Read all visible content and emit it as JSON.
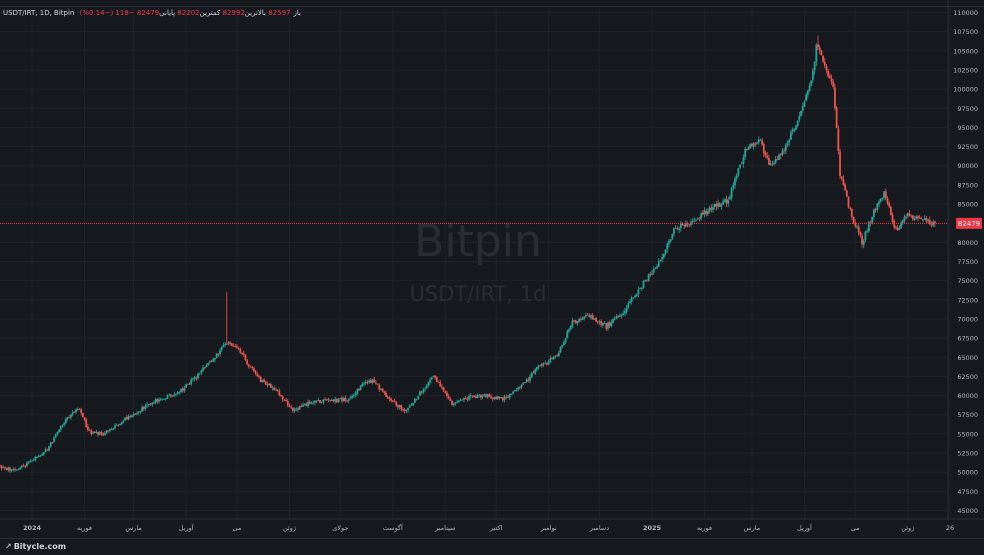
{
  "legend": {
    "symbol": "USDT/IRT, 1D, Bitpin",
    "o_label": "باز",
    "o_value": "82597",
    "h_label": "بالاترین",
    "h_value": "82992",
    "l_label": "کمترین",
    "l_value": "82202",
    "c_label": "پایانی",
    "c_value": "82479",
    "change": "−118 (−0.14%)"
  },
  "watermark": {
    "line1": "Bitpin",
    "line2": "USDT/IRT, 1d"
  },
  "footer": {
    "brand": "Bitycle.com"
  },
  "colors": {
    "background": "#161a1e",
    "up": "#26a69a",
    "down": "#ef5350",
    "price_line": "#f23645",
    "axis_text": "#b2b5be",
    "grid": "#2a2e39"
  },
  "chart_data": {
    "type": "candlestick",
    "title": "USDT/IRT, 1D, Bitpin",
    "ylim": [
      45000,
      110000
    ],
    "y_ticks": [
      45000,
      47500,
      50000,
      52500,
      55000,
      57500,
      60000,
      62500,
      65000,
      67500,
      70000,
      72500,
      75000,
      77500,
      80000,
      82500,
      85000,
      87500,
      90000,
      92500,
      95000,
      97500,
      100000,
      102500,
      105000,
      107500,
      110000
    ],
    "x_ticks": [
      {
        "label": "2024",
        "date": "2024-01-01"
      },
      {
        "label": "فوریه",
        "date": "2024-02-01"
      },
      {
        "label": "مارس",
        "date": "2024-03-01"
      },
      {
        "label": "آوریل",
        "date": "2024-04-01"
      },
      {
        "label": "می",
        "date": "2024-05-01"
      },
      {
        "label": "ژوئن",
        "date": "2024-06-01"
      },
      {
        "label": "جولای",
        "date": "2024-07-01"
      },
      {
        "label": "آگوست",
        "date": "2024-08-01"
      },
      {
        "label": "سپتامبر",
        "date": "2024-09-01"
      },
      {
        "label": "اکتبر",
        "date": "2024-10-01"
      },
      {
        "label": "نوامبر",
        "date": "2024-11-01"
      },
      {
        "label": "دسامبر",
        "date": "2024-12-01"
      },
      {
        "label": "2025",
        "date": "2025-01-01"
      },
      {
        "label": "فوریه",
        "date": "2025-02-01"
      },
      {
        "label": "مارس",
        "date": "2025-03-01"
      },
      {
        "label": "آوریل",
        "date": "2025-04-01"
      },
      {
        "label": "می",
        "date": "2025-05-01"
      },
      {
        "label": "ژوئن",
        "date": "2025-06-01"
      },
      {
        "label": "26",
        "date": "2025-06-26"
      }
    ],
    "last_price": 82479,
    "start_date": "2023-12-10",
    "end_date": "2025-06-17",
    "path": [
      [
        "2023-12-10",
        50800
      ],
      [
        "2023-12-22",
        50300
      ],
      [
        "2024-01-01",
        51500
      ],
      [
        "2024-01-10",
        53000
      ],
      [
        "2024-01-20",
        56500
      ],
      [
        "2024-01-28",
        58500
      ],
      [
        "2024-02-04",
        55200
      ],
      [
        "2024-02-12",
        55000
      ],
      [
        "2024-02-22",
        56500
      ],
      [
        "2024-03-05",
        58200
      ],
      [
        "2024-03-15",
        59500
      ],
      [
        "2024-03-25",
        60000
      ],
      [
        "2024-04-05",
        62000
      ],
      [
        "2024-04-15",
        64500
      ],
      [
        "2024-04-20",
        65500
      ],
      [
        "2024-04-25",
        67000
      ],
      [
        "2024-05-01",
        66500
      ],
      [
        "2024-05-08",
        64000
      ],
      [
        "2024-05-15",
        62000
      ],
      [
        "2024-05-25",
        60500
      ],
      [
        "2024-06-03",
        58000
      ],
      [
        "2024-06-12",
        59000
      ],
      [
        "2024-06-25",
        59300
      ],
      [
        "2024-07-05",
        59500
      ],
      [
        "2024-07-15",
        61500
      ],
      [
        "2024-07-20",
        62000
      ],
      [
        "2024-07-28",
        60000
      ],
      [
        "2024-08-08",
        58000
      ],
      [
        "2024-08-18",
        60500
      ],
      [
        "2024-08-25",
        62500
      ],
      [
        "2024-09-05",
        59000
      ],
      [
        "2024-09-15",
        59800
      ],
      [
        "2024-09-25",
        60000
      ],
      [
        "2024-10-05",
        59500
      ],
      [
        "2024-10-15",
        61000
      ],
      [
        "2024-10-25",
        63500
      ],
      [
        "2024-11-05",
        65000
      ],
      [
        "2024-11-15",
        69500
      ],
      [
        "2024-11-25",
        70500
      ],
      [
        "2024-12-05",
        69000
      ],
      [
        "2024-12-15",
        71000
      ],
      [
        "2024-12-25",
        74000
      ],
      [
        "2025-01-05",
        77500
      ],
      [
        "2025-01-15",
        82000
      ],
      [
        "2025-01-25",
        82500
      ],
      [
        "2025-02-05",
        84500
      ],
      [
        "2025-02-15",
        85500
      ],
      [
        "2025-02-25",
        92000
      ],
      [
        "2025-03-05",
        93500
      ],
      [
        "2025-03-12",
        90000
      ],
      [
        "2025-03-20",
        92000
      ],
      [
        "2025-03-28",
        96000
      ],
      [
        "2025-04-05",
        101000
      ],
      [
        "2025-04-08",
        105500
      ],
      [
        "2025-04-12",
        104000
      ],
      [
        "2025-04-18",
        100000
      ],
      [
        "2025-04-22",
        89000
      ],
      [
        "2025-04-28",
        84000
      ],
      [
        "2025-05-05",
        80000
      ],
      [
        "2025-05-12",
        84000
      ],
      [
        "2025-05-18",
        86500
      ],
      [
        "2025-05-25",
        81500
      ],
      [
        "2025-06-01",
        83500
      ],
      [
        "2025-06-10",
        83000
      ],
      [
        "2025-06-17",
        82479
      ]
    ],
    "spikes": [
      {
        "date": "2024-04-25",
        "high": 73500
      },
      {
        "date": "2025-04-09",
        "high": 107000
      }
    ]
  }
}
